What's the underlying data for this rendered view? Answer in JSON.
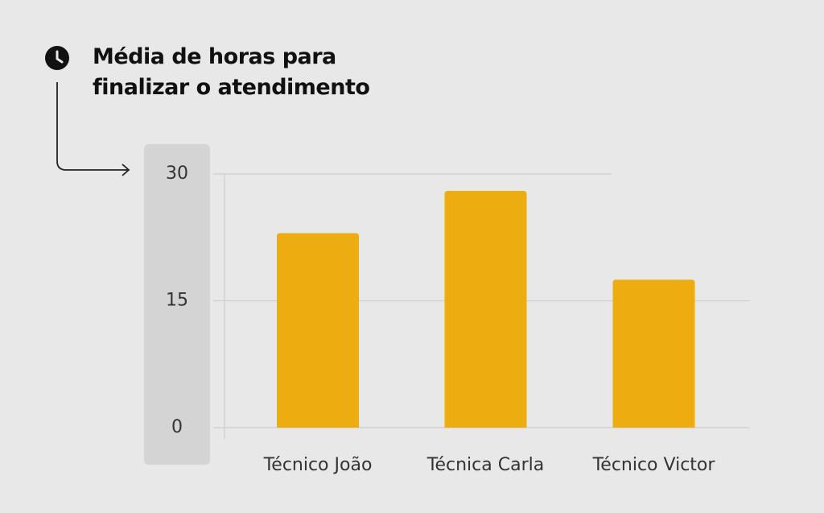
{
  "chart_data": {
    "type": "bar",
    "title": "Média de horas para finalizar o atendimento",
    "categories": [
      "Técnico João",
      "Técnica Carla",
      "Técnico Victor"
    ],
    "values": [
      23,
      28,
      17.5
    ],
    "color": "#edac0f",
    "ylim": [
      0,
      30
    ],
    "yticks": [
      0,
      15,
      30
    ],
    "grid": true
  }
}
